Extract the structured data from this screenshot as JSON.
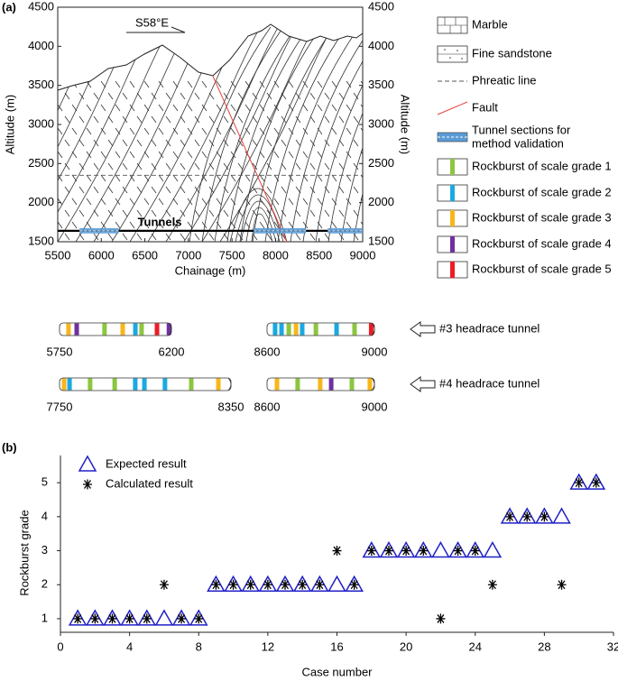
{
  "chart_data": [
    {
      "type": "section",
      "panel_label": "(a)",
      "xlabel": "Chainage (m)",
      "ylabel": "Altitude (m)",
      "y2label": "Altitude (m)",
      "xlim": [
        5500,
        9000
      ],
      "xticks": [
        5500,
        6000,
        6500,
        7000,
        7500,
        8000,
        8500,
        9000
      ],
      "ylim": [
        1500,
        4500
      ],
      "yticks": [
        1500,
        2000,
        2500,
        3000,
        3500,
        4000,
        4500
      ],
      "y2lim": [
        1500,
        4500
      ],
      "y2ticks": [
        1500,
        2000,
        2500,
        3000,
        3500,
        4000,
        4500
      ],
      "direction": "S58°E",
      "tunnel_label": "Tunnels",
      "tunnel_altitude": 1640,
      "phreatic_altitude": 2350,
      "fault": {
        "x": [
          7280,
          8130
        ],
        "y": [
          3620,
          1500
        ]
      },
      "validation_sections": [
        [
          5750,
          6200
        ],
        [
          7750,
          8350
        ],
        [
          8600,
          9000
        ]
      ],
      "legend": [
        {
          "name": "Marble",
          "kind": "marble"
        },
        {
          "name": "Fine sandstone",
          "kind": "sandstone"
        },
        {
          "name": "Phreatic line",
          "kind": "phreatic"
        },
        {
          "name": "Fault",
          "kind": "fault",
          "color": "#e8413c"
        },
        {
          "name": [
            "Tunnel sections for",
            "method validation"
          ],
          "kind": "section",
          "color": "#5b9bd5"
        },
        {
          "name": "Rockburst of scale grade 1",
          "kind": "grade",
          "grade": 1,
          "color": "#8cc63f"
        },
        {
          "name": "Rockburst of scale grade 2",
          "kind": "grade",
          "grade": 2,
          "color": "#1ba9e1"
        },
        {
          "name": "Rockburst of scale grade 3",
          "kind": "grade",
          "grade": 3,
          "color": "#f8b61c"
        },
        {
          "name": "Rockburst of scale grade 4",
          "kind": "grade",
          "grade": 4,
          "color": "#7030a0"
        },
        {
          "name": "Rockburst of scale grade 5",
          "kind": "grade",
          "grade": 5,
          "color": "#ee1c25"
        }
      ],
      "tunnels": [
        {
          "name": "#3 headrace tunnel",
          "strips": [
            {
              "range": [
                5750,
                6200
              ],
              "bursts": [
                {
                  "chainage": 5786,
                  "grade": 3
                },
                {
                  "chainage": 5819,
                  "grade": 4
                },
                {
                  "chainage": 5931,
                  "grade": 1
                },
                {
                  "chainage": 6004,
                  "grade": 3
                },
                {
                  "chainage": 6055,
                  "grade": 2
                },
                {
                  "chainage": 6080,
                  "grade": 1
                },
                {
                  "chainage": 6142,
                  "grade": 5
                },
                {
                  "chainage": 6190,
                  "grade": 4
                }
              ]
            },
            {
              "range": [
                8600,
                9000
              ],
              "bursts": [
                {
                  "chainage": 8630,
                  "grade": 2
                },
                {
                  "chainage": 8654,
                  "grade": 2
                },
                {
                  "chainage": 8681,
                  "grade": 1
                },
                {
                  "chainage": 8708,
                  "grade": 3
                },
                {
                  "chainage": 8731,
                  "grade": 2
                },
                {
                  "chainage": 8782,
                  "grade": 1
                },
                {
                  "chainage": 8859,
                  "grade": 2
                },
                {
                  "chainage": 8926,
                  "grade": 1
                },
                {
                  "chainage": 8988,
                  "grade": 5
                }
              ]
            }
          ]
        },
        {
          "name": "#4 headrace tunnel",
          "strips": [
            {
              "range": [
                7750,
                8350
              ],
              "bursts": [
                {
                  "chainage": 7766,
                  "grade": 3
                },
                {
                  "chainage": 7785,
                  "grade": 2
                },
                {
                  "chainage": 7857,
                  "grade": 1
                },
                {
                  "chainage": 7943,
                  "grade": 1
                },
                {
                  "chainage": 8015,
                  "grade": 2
                },
                {
                  "chainage": 8047,
                  "grade": 2
                },
                {
                  "chainage": 8119,
                  "grade": 2
                },
                {
                  "chainage": 8211,
                  "grade": 1
                },
                {
                  "chainage": 8306,
                  "grade": 3
                }
              ]
            },
            {
              "range": [
                8600,
                9000
              ],
              "bursts": [
                {
                  "chainage": 8637,
                  "grade": 3
                },
                {
                  "chainage": 8714,
                  "grade": 1
                },
                {
                  "chainage": 8798,
                  "grade": 3
                },
                {
                  "chainage": 8839,
                  "grade": 4
                },
                {
                  "chainage": 8916,
                  "grade": 1
                },
                {
                  "chainage": 8983,
                  "grade": 3
                }
              ]
            }
          ]
        }
      ]
    },
    {
      "type": "scatter",
      "panel_label": "(b)",
      "xlabel": "Case number",
      "ylabel": "Rockburst grade",
      "xlim": [
        0,
        32
      ],
      "xticks": [
        0,
        4,
        8,
        12,
        16,
        20,
        24,
        28,
        32
      ],
      "ylim": [
        0.6,
        5.8
      ],
      "yticks": [
        1,
        2,
        3,
        4,
        5
      ],
      "x": [
        1,
        2,
        3,
        4,
        5,
        6,
        7,
        8,
        9,
        10,
        11,
        12,
        13,
        14,
        15,
        16,
        17,
        18,
        19,
        20,
        21,
        22,
        23,
        24,
        25,
        26,
        27,
        28,
        29,
        30,
        31
      ],
      "series": [
        {
          "name": "Expected result",
          "marker": "triangle",
          "color": "#2020c8",
          "values": [
            1,
            1,
            1,
            1,
            1,
            1,
            1,
            1,
            2,
            2,
            2,
            2,
            2,
            2,
            2,
            2,
            2,
            3,
            3,
            3,
            3,
            3,
            3,
            3,
            3,
            4,
            4,
            4,
            4,
            5,
            5
          ]
        },
        {
          "name": "Calculated result",
          "marker": "asterisk",
          "color": "#000000",
          "values": [
            1,
            1,
            1,
            1,
            1,
            2,
            1,
            1,
            2,
            2,
            2,
            2,
            2,
            2,
            2,
            3,
            2,
            3,
            3,
            3,
            3,
            1,
            3,
            3,
            2,
            4,
            4,
            4,
            2,
            5,
            5
          ]
        }
      ]
    }
  ]
}
